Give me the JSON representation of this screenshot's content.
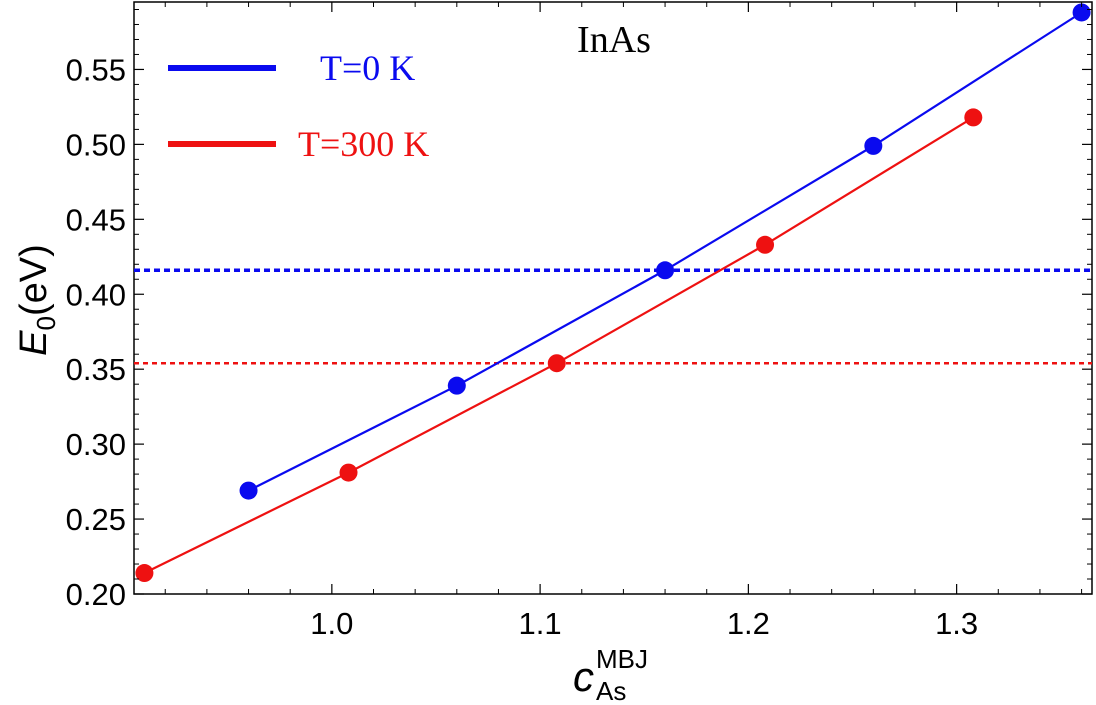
{
  "chart_data": {
    "type": "line",
    "title": "InAs",
    "xlabel": {
      "main": "c",
      "sub": "As",
      "sup": "MBJ"
    },
    "ylabel": {
      "main": "E",
      "sub": "0",
      "unit": "(eV)"
    },
    "xlim": [
      0.905,
      1.365
    ],
    "ylim": [
      0.2,
      0.595
    ],
    "xticks": [
      1.0,
      1.1,
      1.2,
      1.3
    ],
    "yticks": [
      0.2,
      0.25,
      0.3,
      0.35,
      0.4,
      0.45,
      0.5,
      0.55
    ],
    "xtick_labels": [
      "1.0",
      "1.1",
      "1.2",
      "1.3"
    ],
    "ytick_labels": [
      "0.20",
      "0.25",
      "0.30",
      "0.35",
      "0.40",
      "0.45",
      "0.50",
      "0.55"
    ],
    "legend_position": "top-left",
    "series": [
      {
        "name": "T=0 K",
        "color": "#0a0aef",
        "x": [
          0.96,
          1.06,
          1.16,
          1.26,
          1.36
        ],
        "y": [
          0.269,
          0.339,
          0.416,
          0.499,
          0.588
        ],
        "reference_line": 0.416
      },
      {
        "name": "T=300 K",
        "color": "#ee1111",
        "x": [
          0.91,
          1.008,
          1.108,
          1.208,
          1.308
        ],
        "y": [
          0.214,
          0.281,
          0.354,
          0.433,
          0.518
        ],
        "reference_line": 0.354
      }
    ]
  }
}
